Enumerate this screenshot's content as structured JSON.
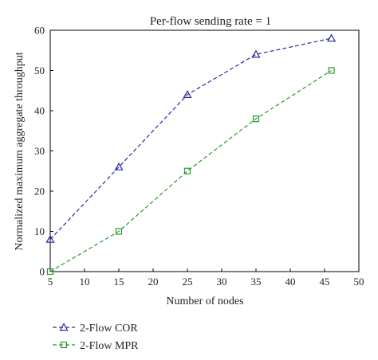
{
  "chart_data": {
    "type": "line",
    "title": "Per-flow sending rate = 1",
    "xlabel": "Number of nodes",
    "ylabel": "Normalized maximum aggregate throughput",
    "xlim": [
      5,
      50
    ],
    "ylim": [
      0,
      60
    ],
    "xticks": [
      5,
      10,
      15,
      20,
      25,
      30,
      35,
      40,
      45,
      50
    ],
    "yticks": [
      0,
      10,
      20,
      30,
      40,
      50,
      60
    ],
    "grid": false,
    "legend_position": "bottom-left, below plot",
    "series": [
      {
        "name": "2-Flow COR",
        "color": "#2a2a9e",
        "marker": "triangle",
        "line_style": "dashed",
        "x": [
          5,
          15,
          25,
          35,
          46
        ],
        "y": [
          8,
          26,
          44,
          54,
          58
        ]
      },
      {
        "name": "2-Flow MPR",
        "color": "#2a9a2a",
        "marker": "square",
        "line_style": "dashed",
        "x": [
          5,
          15,
          25,
          35,
          46
        ],
        "y": [
          0,
          10,
          25,
          38,
          50
        ]
      }
    ]
  }
}
